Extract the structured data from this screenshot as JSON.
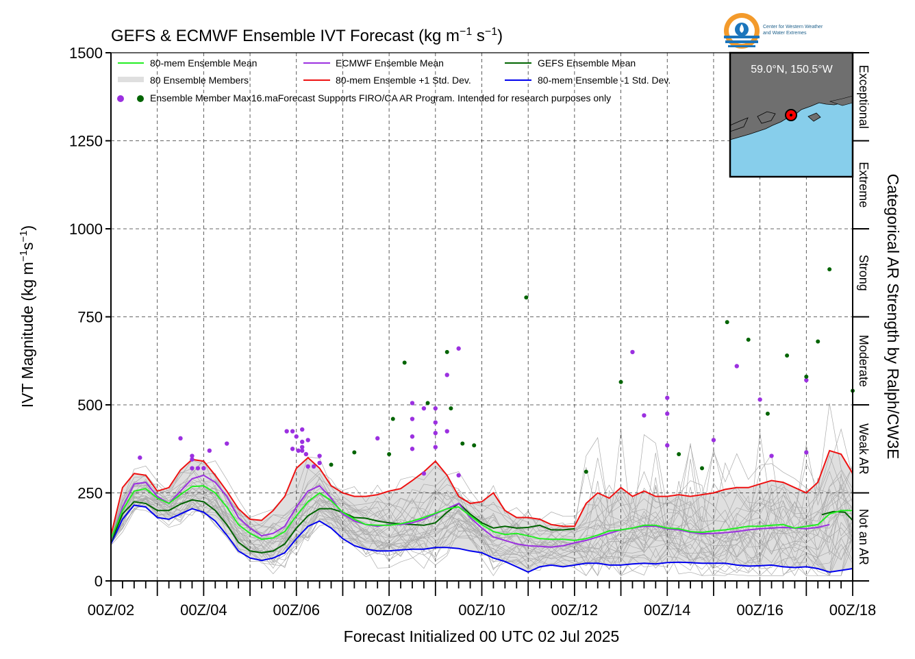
{
  "chart_data": {
    "type": "line",
    "title": "GEFS & ECMWF Ensemble IVT Forecast (kg m",
    "title_units": [
      "−1",
      " s",
      "−1",
      ")"
    ],
    "ylabel": "IVT Magnitude (kg m",
    "ylabel_units": [
      "−1",
      "s",
      "−1",
      ")"
    ],
    "xlabel": "Forecast Initialized 00 UTC 02 Jul 2025",
    "right_label": "Categorical AR Strength by Ralph/CW3E",
    "ylim": [
      0,
      1500
    ],
    "yticks": [
      0,
      250,
      500,
      750,
      1000,
      1250,
      1500
    ],
    "x_range_hours": [
      0,
      384
    ],
    "xticks": [
      {
        "h": 0,
        "label": "00Z/02"
      },
      {
        "h": 48,
        "label": "00Z/04"
      },
      {
        "h": 96,
        "label": "00Z/06"
      },
      {
        "h": 144,
        "label": "00Z/08"
      },
      {
        "h": 192,
        "label": "00Z/10"
      },
      {
        "h": 240,
        "label": "00Z/12"
      },
      {
        "h": 288,
        "label": "00Z/14"
      },
      {
        "h": 336,
        "label": "00Z/16"
      },
      {
        "h": 384,
        "label": "00Z/18"
      }
    ],
    "categories": [
      {
        "label": "Not an AR",
        "range": [
          0,
          250
        ]
      },
      {
        "label": "Weak AR",
        "range": [
          250,
          500
        ]
      },
      {
        "label": "Moderate",
        "range": [
          500,
          750
        ]
      },
      {
        "label": "Strong",
        "range": [
          750,
          1000
        ]
      },
      {
        "label": "Extreme",
        "range": [
          1000,
          1250
        ]
      },
      {
        "label": "Exceptional",
        "range": [
          1250,
          1500
        ]
      }
    ],
    "legend": [
      {
        "label": "80-mem Ensemble Mean",
        "color": "#22ee22",
        "style": "line"
      },
      {
        "label": "ECMWF Ensemble Mean",
        "color": "#9b30e0",
        "style": "line"
      },
      {
        "label": "GEFS Ensemble Mean",
        "color": "#006400",
        "style": "line"
      },
      {
        "label": "80 Ensemble Members",
        "color": "#aaaaaa",
        "style": "thin"
      },
      {
        "label": "80-mem Ensemble +1 Std. Dev.",
        "color": "#ee1111",
        "style": "line"
      },
      {
        "label": "80-mem Ensemble -1 Std. Dev.",
        "color": "#0000ee",
        "style": "line"
      },
      {
        "label": "Ensemble Member Max",
        "color": "#9b30e0",
        "style": "dots"
      }
    ],
    "disclaimer": "16.maForecast Supports FIRO/CA AR Program. Intended for research purposes only",
    "inset": {
      "location": "59.0°N, 150.5°W",
      "land": "#6f6f6f",
      "ocean": "#87ceeb"
    },
    "logo_text": [
      "Center for Western Weather",
      "and Water Extremes"
    ],
    "series": [
      {
        "name": "80-mem Ensemble Mean",
        "color": "#22ee22",
        "x": [
          0,
          6,
          12,
          18,
          24,
          30,
          36,
          42,
          48,
          54,
          60,
          66,
          72,
          78,
          84,
          90,
          96,
          102,
          108,
          114,
          120,
          126,
          132,
          138,
          144,
          150,
          156,
          162,
          168,
          174,
          180,
          186,
          192,
          198,
          204,
          210,
          216,
          222,
          228,
          234,
          240,
          246,
          252,
          258,
          264,
          270,
          276,
          282,
          288,
          294,
          300,
          306,
          312,
          318,
          324,
          330,
          336,
          342,
          348,
          354,
          360,
          366,
          372,
          378,
          384
        ],
        "y": [
          120,
          200,
          255,
          262,
          235,
          220,
          245,
          268,
          270,
          250,
          210,
          160,
          135,
          118,
          122,
          140,
          185,
          225,
          250,
          228,
          195,
          175,
          160,
          158,
          158,
          162,
          170,
          180,
          192,
          205,
          210,
          185,
          160,
          140,
          132,
          135,
          128,
          120,
          118,
          118,
          115,
          120,
          130,
          142,
          145,
          150,
          158,
          158,
          150,
          148,
          140,
          138,
          142,
          145,
          150,
          155,
          155,
          158,
          160,
          150,
          155,
          160,
          190,
          200,
          200
        ]
      },
      {
        "name": "ECMWF Ensemble Mean",
        "color": "#9b30e0",
        "x": [
          0,
          6,
          12,
          18,
          24,
          30,
          36,
          42,
          48,
          54,
          60,
          66,
          72,
          78,
          84,
          90,
          96,
          102,
          108,
          114,
          120,
          126,
          132,
          138,
          144,
          150,
          156,
          162,
          168,
          174,
          180,
          186,
          192,
          198,
          204,
          210,
          216,
          222,
          228,
          234,
          240,
          246,
          252,
          258,
          264,
          270,
          276,
          282,
          288,
          294,
          300,
          306,
          312,
          318,
          324,
          330,
          336,
          342,
          348,
          354,
          360,
          366,
          372
        ],
        "y": [
          115,
          210,
          275,
          280,
          240,
          220,
          255,
          290,
          300,
          280,
          240,
          180,
          150,
          128,
          135,
          155,
          210,
          255,
          270,
          235,
          190,
          170,
          160,
          155,
          160,
          160,
          165,
          175,
          190,
          205,
          220,
          180,
          150,
          125,
          115,
          105,
          100,
          98,
          96,
          100,
          108,
          115,
          125,
          135,
          145,
          150,
          155,
          155,
          148,
          145,
          138,
          134,
          135,
          137,
          140,
          145,
          148,
          150,
          152,
          150,
          148,
          152,
          160
        ]
      },
      {
        "name": "GEFS Ensemble Mean",
        "color": "#006400",
        "x": [
          0,
          6,
          12,
          18,
          24,
          30,
          36,
          42,
          48,
          54,
          60,
          66,
          72,
          78,
          84,
          90,
          96,
          102,
          108,
          114,
          120,
          126,
          132,
          138,
          144,
          150,
          156,
          162,
          168,
          174,
          180,
          186,
          192,
          198,
          204,
          210,
          216,
          222,
          228,
          234,
          240,
          368,
          374,
          380,
          384
        ],
        "y": [
          110,
          190,
          225,
          220,
          200,
          200,
          218,
          230,
          225,
          200,
          160,
          110,
          85,
          80,
          85,
          105,
          150,
          185,
          205,
          205,
          195,
          180,
          178,
          170,
          165,
          162,
          160,
          158,
          165,
          195,
          220,
          190,
          165,
          150,
          155,
          150,
          152,
          158,
          145,
          145,
          148,
          188,
          197,
          195,
          172
        ]
      },
      {
        "name": "80-mem Ensemble +1 Std. Dev.",
        "color": "#ee1111",
        "x": [
          0,
          6,
          12,
          18,
          24,
          30,
          36,
          42,
          48,
          54,
          60,
          66,
          72,
          78,
          84,
          90,
          96,
          102,
          108,
          114,
          120,
          126,
          132,
          138,
          144,
          150,
          156,
          162,
          168,
          174,
          180,
          186,
          192,
          198,
          204,
          210,
          216,
          222,
          228,
          234,
          240,
          246,
          252,
          258,
          264,
          270,
          276,
          282,
          288,
          294,
          300,
          306,
          312,
          318,
          324,
          330,
          336,
          342,
          348,
          354,
          360,
          366,
          372,
          378,
          384
        ],
        "y": [
          130,
          265,
          305,
          300,
          255,
          265,
          315,
          345,
          340,
          300,
          255,
          205,
          175,
          172,
          200,
          240,
          320,
          350,
          320,
          270,
          250,
          240,
          240,
          245,
          255,
          262,
          285,
          310,
          340,
          300,
          240,
          220,
          225,
          250,
          200,
          180,
          180,
          175,
          160,
          155,
          155,
          220,
          250,
          235,
          265,
          240,
          255,
          240,
          240,
          245,
          240,
          245,
          250,
          260,
          265,
          265,
          275,
          285,
          280,
          265,
          250,
          280,
          370,
          360,
          305
        ]
      },
      {
        "name": "80-mem Ensemble -1 Std. Dev.",
        "color": "#0000ee",
        "x": [
          0,
          6,
          12,
          18,
          24,
          30,
          36,
          42,
          48,
          54,
          60,
          66,
          72,
          78,
          84,
          90,
          96,
          102,
          108,
          114,
          120,
          126,
          132,
          138,
          144,
          150,
          156,
          162,
          168,
          174,
          180,
          186,
          192,
          198,
          204,
          210,
          216,
          222,
          228,
          234,
          240,
          246,
          252,
          258,
          264,
          270,
          276,
          282,
          288,
          294,
          300,
          306,
          312,
          318,
          324,
          330,
          336,
          342,
          348,
          354,
          360,
          366,
          372,
          378,
          384
        ],
        "y": [
          105,
          175,
          215,
          210,
          180,
          175,
          190,
          205,
          195,
          170,
          130,
          85,
          65,
          58,
          65,
          80,
          120,
          155,
          170,
          150,
          120,
          100,
          90,
          85,
          85,
          88,
          90,
          90,
          95,
          95,
          92,
          85,
          80,
          65,
          55,
          40,
          25,
          40,
          45,
          40,
          45,
          50,
          50,
          45,
          45,
          48,
          50,
          48,
          52,
          53,
          52,
          50,
          50,
          50,
          45,
          42,
          43,
          45,
          40,
          38,
          40,
          35,
          25,
          30,
          35
        ]
      }
    ],
    "ecmwf_max_points": [
      {
        "x": 15,
        "y": 350
      },
      {
        "x": 36,
        "y": 405
      },
      {
        "x": 42,
        "y": 345
      },
      {
        "x": 42,
        "y": 355
      },
      {
        "x": 42,
        "y": 320
      },
      {
        "x": 45,
        "y": 320
      },
      {
        "x": 48,
        "y": 320
      },
      {
        "x": 51,
        "y": 370
      },
      {
        "x": 60,
        "y": 390
      },
      {
        "x": 91,
        "y": 425
      },
      {
        "x": 94,
        "y": 425
      },
      {
        "x": 94,
        "y": 375
      },
      {
        "x": 96,
        "y": 410
      },
      {
        "x": 97,
        "y": 370
      },
      {
        "x": 99,
        "y": 430
      },
      {
        "x": 99,
        "y": 395
      },
      {
        "x": 99,
        "y": 380
      },
      {
        "x": 99,
        "y": 370
      },
      {
        "x": 101,
        "y": 360
      },
      {
        "x": 102,
        "y": 400
      },
      {
        "x": 102,
        "y": 325
      },
      {
        "x": 105,
        "y": 325
      },
      {
        "x": 108,
        "y": 355
      },
      {
        "x": 108,
        "y": 335
      },
      {
        "x": 138,
        "y": 405
      },
      {
        "x": 156,
        "y": 410
      },
      {
        "x": 156,
        "y": 505
      },
      {
        "x": 156,
        "y": 460
      },
      {
        "x": 156,
        "y": 375
      },
      {
        "x": 162,
        "y": 490
      },
      {
        "x": 162,
        "y": 305
      },
      {
        "x": 168,
        "y": 490
      },
      {
        "x": 168,
        "y": 450
      },
      {
        "x": 168,
        "y": 420
      },
      {
        "x": 168,
        "y": 380
      },
      {
        "x": 174,
        "y": 585
      },
      {
        "x": 174,
        "y": 425
      },
      {
        "x": 180,
        "y": 660
      },
      {
        "x": 180,
        "y": 300
      },
      {
        "x": 270,
        "y": 650
      },
      {
        "x": 276,
        "y": 470
      },
      {
        "x": 288,
        "y": 520
      },
      {
        "x": 288,
        "y": 475
      },
      {
        "x": 288,
        "y": 385
      },
      {
        "x": 312,
        "y": 400
      },
      {
        "x": 324,
        "y": 610
      },
      {
        "x": 336,
        "y": 515
      },
      {
        "x": 342,
        "y": 355
      },
      {
        "x": 360,
        "y": 570
      },
      {
        "x": 360,
        "y": 365
      }
    ],
    "gefs_max_points": [
      {
        "x": 114,
        "y": 330
      },
      {
        "x": 126,
        "y": 365
      },
      {
        "x": 144,
        "y": 360
      },
      {
        "x": 146,
        "y": 460
      },
      {
        "x": 152,
        "y": 620
      },
      {
        "x": 164,
        "y": 505
      },
      {
        "x": 174,
        "y": 650
      },
      {
        "x": 176,
        "y": 490
      },
      {
        "x": 182,
        "y": 390
      },
      {
        "x": 188,
        "y": 385
      },
      {
        "x": 215,
        "y": 805
      },
      {
        "x": 246,
        "y": 310
      },
      {
        "x": 264,
        "y": 565
      },
      {
        "x": 294,
        "y": 360
      },
      {
        "x": 306,
        "y": 320
      },
      {
        "x": 319,
        "y": 735
      },
      {
        "x": 330,
        "y": 685
      },
      {
        "x": 340,
        "y": 475
      },
      {
        "x": 350,
        "y": 640
      },
      {
        "x": 360,
        "y": 580
      },
      {
        "x": 366,
        "y": 680
      },
      {
        "x": 372,
        "y": 885
      },
      {
        "x": 384,
        "y": 540
      }
    ]
  }
}
